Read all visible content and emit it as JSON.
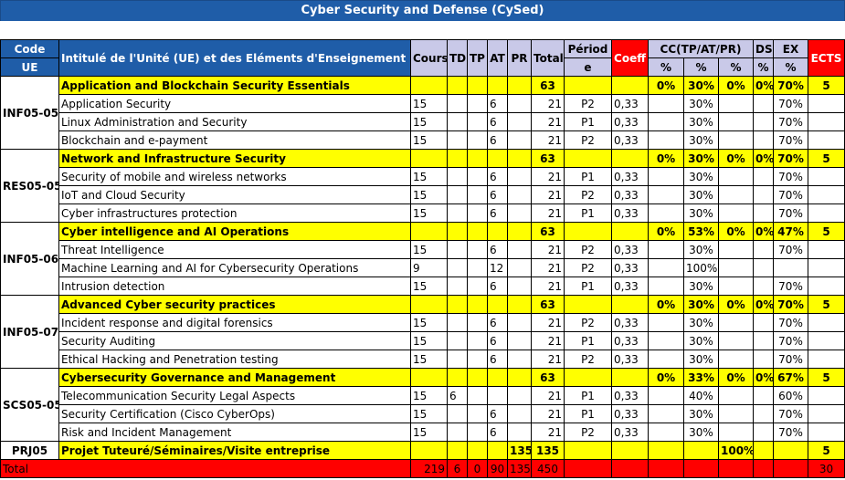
{
  "title": "Cyber Security and Defense (CySed)",
  "headers": {
    "code": "Code",
    "ue": "UE",
    "intitule": "Intitulé de l'Unité (UE) et des Eléments d'Enseignement (EE)",
    "cours": "Cours",
    "td": "TD",
    "tp": "TP",
    "at": "AT",
    "pr": "PR",
    "total": "Total",
    "periode_1": "Périod",
    "periode_2": "e",
    "coeff": "Coeff",
    "cc": "CC(TP/AT/PR)",
    "ds": "DS",
    "ex": "EX",
    "ects": "ECTS",
    "pct": "%"
  },
  "units": [
    {
      "code": "INF05-05",
      "name": "Application and Blockchain Security Essentials",
      "total": "63",
      "cc1": "0%",
      "cc2": "30%",
      "cc3": "0%",
      "ds": "0%",
      "ex": "70%",
      "ects": "5",
      "elements": [
        {
          "name": "Application Security",
          "cours": "15",
          "td": "",
          "tp": "",
          "at": "6",
          "pr": "",
          "total": "21",
          "periode": "P2",
          "coeff": "0,33",
          "cc1": "",
          "cc2": "30%",
          "cc3": "",
          "ds": "",
          "ex": "70%"
        },
        {
          "name": "Linux Administration and Security",
          "cours": "15",
          "td": "",
          "tp": "",
          "at": "6",
          "pr": "",
          "total": "21",
          "periode": "P1",
          "coeff": "0,33",
          "cc1": "",
          "cc2": "30%",
          "cc3": "",
          "ds": "",
          "ex": "70%"
        },
        {
          "name": "Blockchain and e-payment",
          "cours": "15",
          "td": "",
          "tp": "",
          "at": "6",
          "pr": "",
          "total": "21",
          "periode": "P2",
          "coeff": "0,33",
          "cc1": "",
          "cc2": "30%",
          "cc3": "",
          "ds": "",
          "ex": "70%"
        }
      ]
    },
    {
      "code": "RES05-05",
      "name": "Network and Infrastructure Security",
      "total": "63",
      "cc1": "0%",
      "cc2": "30%",
      "cc3": "0%",
      "ds": "0%",
      "ex": "70%",
      "ects": "5",
      "elements": [
        {
          "name": "Security of mobile and wireless networks",
          "cours": "15",
          "td": "",
          "tp": "",
          "at": "6",
          "pr": "",
          "total": "21",
          "periode": "P1",
          "coeff": "0,33",
          "cc1": "",
          "cc2": "30%",
          "cc3": "",
          "ds": "",
          "ex": "70%"
        },
        {
          "name": "IoT and Cloud Security",
          "cours": "15",
          "td": "",
          "tp": "",
          "at": "6",
          "pr": "",
          "total": "21",
          "periode": "P2",
          "coeff": "0,33",
          "cc1": "",
          "cc2": "30%",
          "cc3": "",
          "ds": "",
          "ex": "70%"
        },
        {
          "name": "Cyber infrastructures protection",
          "cours": "15",
          "td": "",
          "tp": "",
          "at": "6",
          "pr": "",
          "total": "21",
          "periode": "P1",
          "coeff": "0,33",
          "cc1": "",
          "cc2": "30%",
          "cc3": "",
          "ds": "",
          "ex": "70%"
        }
      ]
    },
    {
      "code": "INF05-06",
      "name": "Cyber intelligence and AI Operations",
      "total": "63",
      "cc1": "0%",
      "cc2": "53%",
      "cc3": "0%",
      "ds": "0%",
      "ex": "47%",
      "ects": "5",
      "elements": [
        {
          "name": "Threat Intelligence",
          "cours": "15",
          "td": "",
          "tp": "",
          "at": "6",
          "pr": "",
          "total": "21",
          "periode": "P2",
          "coeff": "0,33",
          "cc1": "",
          "cc2": "30%",
          "cc3": "",
          "ds": "",
          "ex": "70%"
        },
        {
          "name": "Machine Learning and AI for Cybersecurity Operations",
          "cours": "9",
          "td": "",
          "tp": "",
          "at": "12",
          "pr": "",
          "total": "21",
          "periode": "P2",
          "coeff": "0,33",
          "cc1": "",
          "cc2": "100%",
          "cc3": "",
          "ds": "",
          "ex": ""
        },
        {
          "name": "Intrusion detection",
          "cours": "15",
          "td": "",
          "tp": "",
          "at": "6",
          "pr": "",
          "total": "21",
          "periode": "P1",
          "coeff": "0,33",
          "cc1": "",
          "cc2": "30%",
          "cc3": "",
          "ds": "",
          "ex": "70%"
        }
      ]
    },
    {
      "code": "INF05-07",
      "name": "Advanced Cyber security practices",
      "total": "63",
      "cc1": "0%",
      "cc2": "30%",
      "cc3": "0%",
      "ds": "0%",
      "ex": "70%",
      "ects": "5",
      "elements": [
        {
          "name": "Incident response and digital forensics",
          "cours": "15",
          "td": "",
          "tp": "",
          "at": "6",
          "pr": "",
          "total": "21",
          "periode": "P2",
          "coeff": "0,33",
          "cc1": "",
          "cc2": "30%",
          "cc3": "",
          "ds": "",
          "ex": "70%"
        },
        {
          "name": "Security Auditing",
          "cours": "15",
          "td": "",
          "tp": "",
          "at": "6",
          "pr": "",
          "total": "21",
          "periode": "P1",
          "coeff": "0,33",
          "cc1": "",
          "cc2": "30%",
          "cc3": "",
          "ds": "",
          "ex": "70%"
        },
        {
          "name": "Ethical Hacking and Penetration testing",
          "cours": "15",
          "td": "",
          "tp": "",
          "at": "6",
          "pr": "",
          "total": "21",
          "periode": "P2",
          "coeff": "0,33",
          "cc1": "",
          "cc2": "30%",
          "cc3": "",
          "ds": "",
          "ex": "70%"
        }
      ]
    },
    {
      "code": "SCS05-05",
      "name": "Cybersecurity Governance and Management",
      "total": "63",
      "cc1": "0%",
      "cc2": "33%",
      "cc3": "0%",
      "ds": "0%",
      "ex": "67%",
      "ects": "5",
      "elements": [
        {
          "name": "Telecommunication Security Legal Aspects",
          "cours": "15",
          "td": "6",
          "tp": "",
          "at": "",
          "pr": "",
          "total": "21",
          "periode": "P1",
          "coeff": "0,33",
          "cc1": "",
          "cc2": "40%",
          "cc3": "",
          "ds": "",
          "ex": "60%"
        },
        {
          "name": "Security Certification (Cisco CyberOps)",
          "cours": "15",
          "td": "",
          "tp": "",
          "at": "6",
          "pr": "",
          "total": "21",
          "periode": "P1",
          "coeff": "0,33",
          "cc1": "",
          "cc2": "30%",
          "cc3": "",
          "ds": "",
          "ex": "70%"
        },
        {
          "name": "Risk and Incident Management",
          "cours": "15",
          "td": "",
          "tp": "",
          "at": "6",
          "pr": "",
          "total": "21",
          "periode": "P2",
          "coeff": "0,33",
          "cc1": "",
          "cc2": "30%",
          "cc3": "",
          "ds": "",
          "ex": "70%"
        }
      ]
    }
  ],
  "project": {
    "code": "PRJ05",
    "name": "Projet Tuteuré/Séminaires/Visite entreprise",
    "pr": "135",
    "total": "135",
    "cc3": "100%",
    "ects": "5"
  },
  "totals": {
    "label": "Total",
    "cours": "219",
    "td": "6",
    "tp": "0",
    "at": "90",
    "pr": "135",
    "total": "450",
    "ects": "30"
  },
  "colors": {
    "header_blue": "#1f5da8",
    "header_lavender": "#c9c9e8",
    "ue_yellow": "#ffff00",
    "accent_red": "#ff0000"
  }
}
